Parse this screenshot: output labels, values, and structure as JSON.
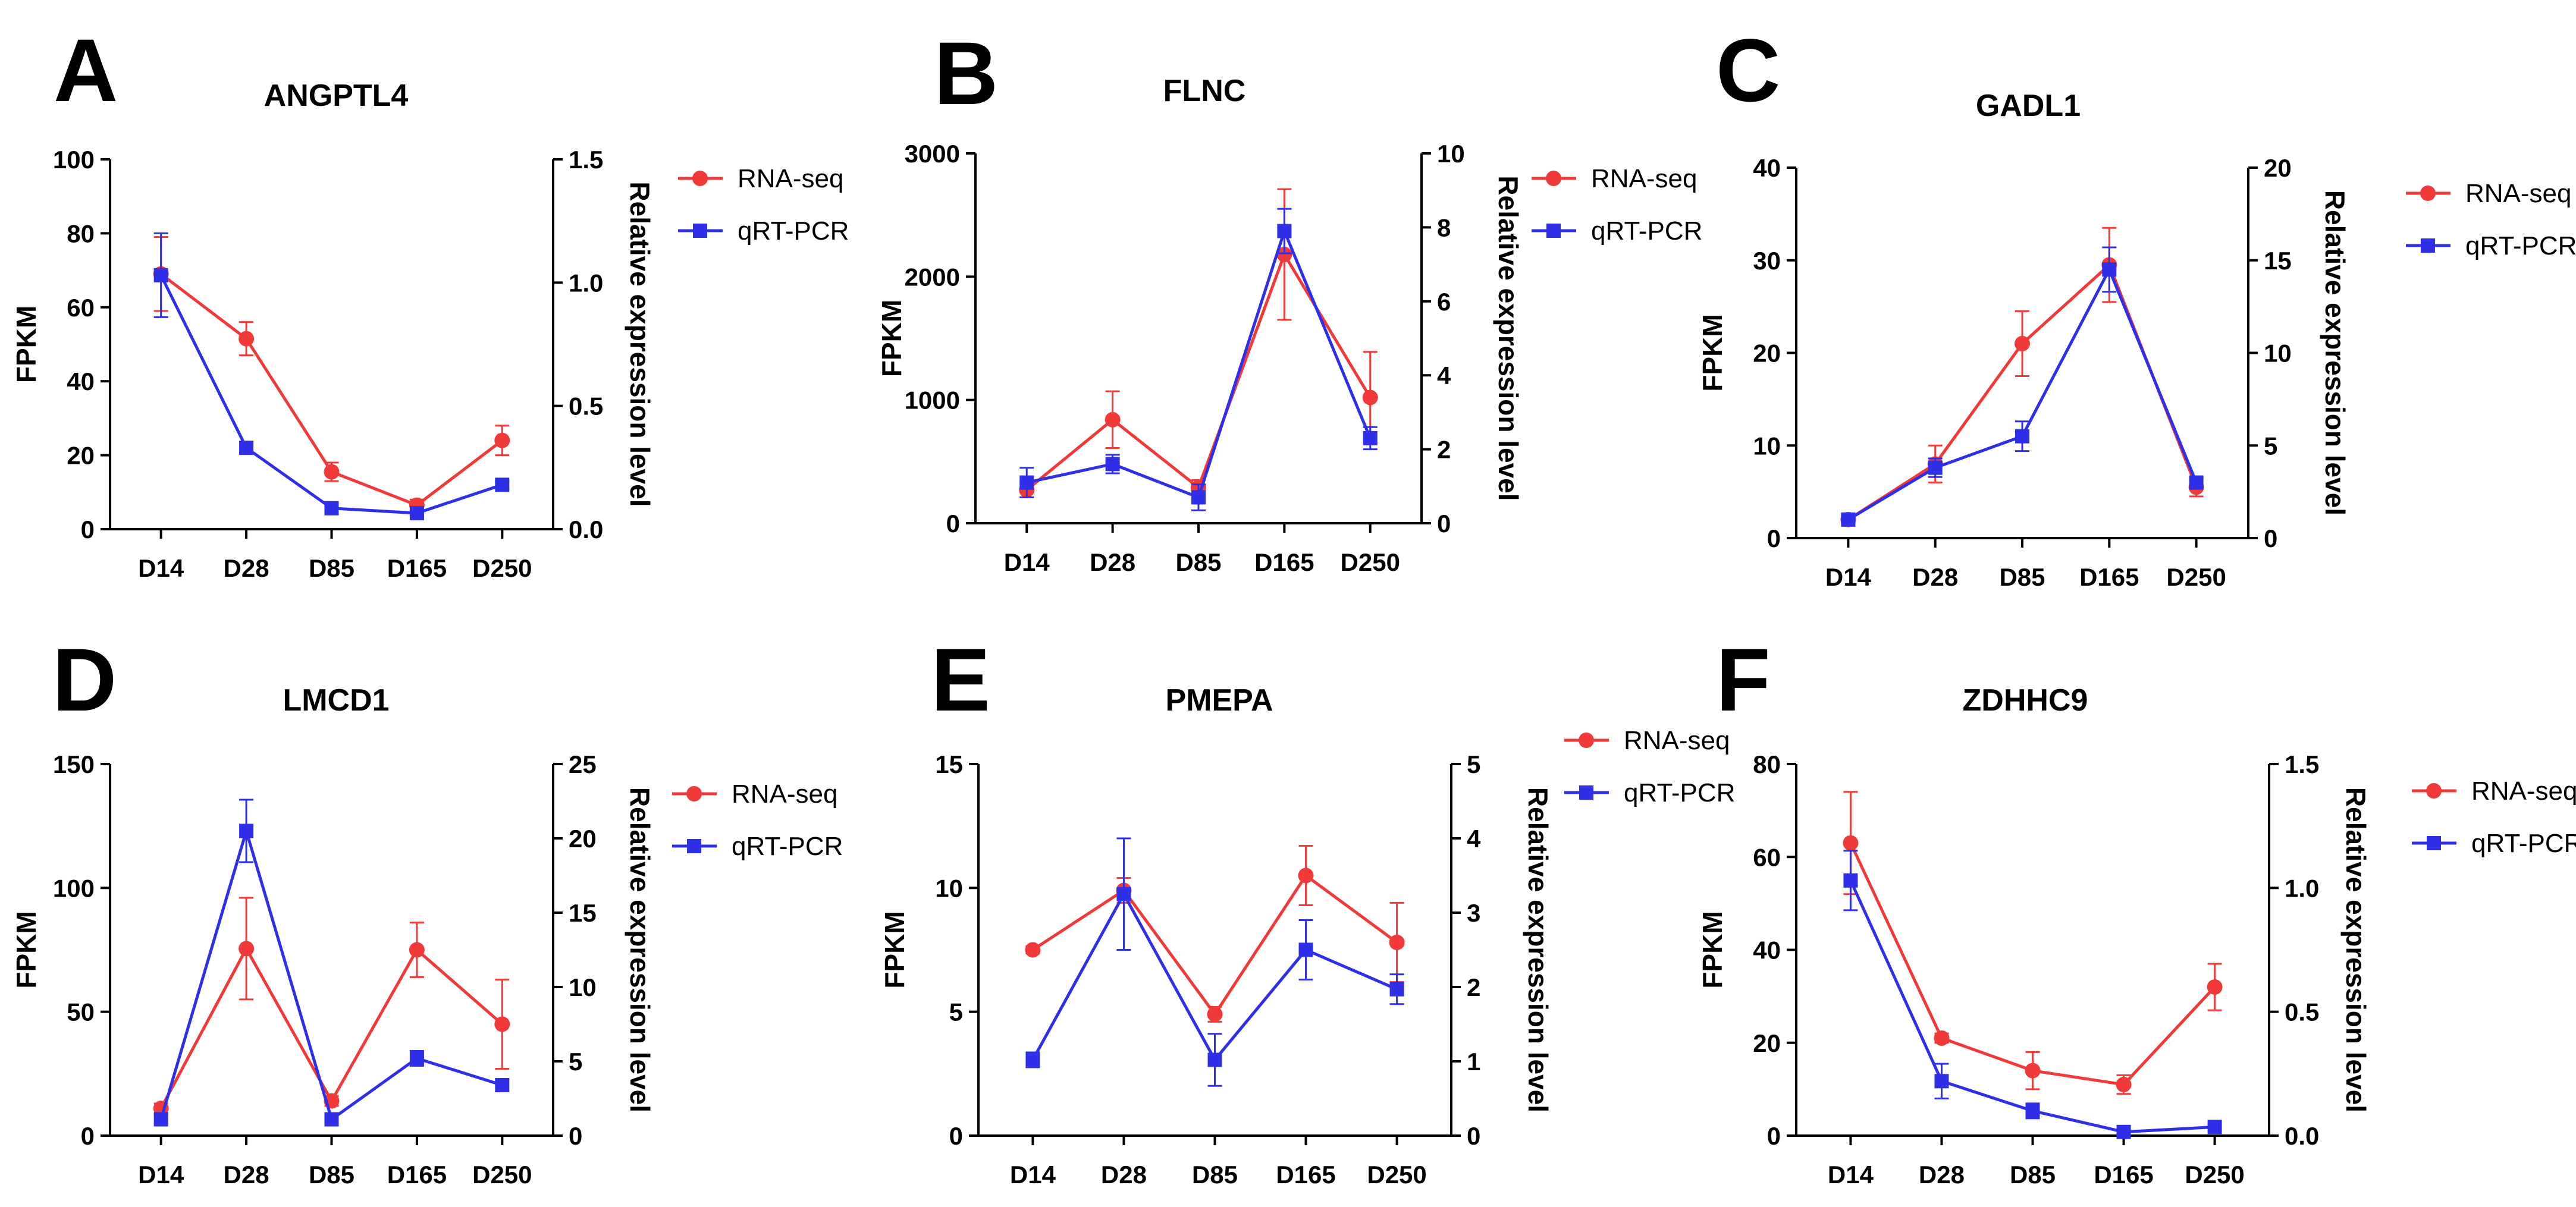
{
  "legend": {
    "rna": "RNA-seq",
    "qpcr": "qRT-PCR"
  },
  "colors": {
    "rna": "#f03a3a",
    "qpcr": "#2f2fe8"
  },
  "chart_data": [
    {
      "type": "line",
      "panel": "A",
      "title": "ANGPTL4",
      "ylabel": "FPKM",
      "y2label": "Relative expression level",
      "categories": [
        "D14",
        "D28",
        "D85",
        "D165",
        "D250"
      ],
      "ylim": [
        0,
        100
      ],
      "yticks": [
        "0",
        "20",
        "40",
        "60",
        "80",
        "100"
      ],
      "y2lim": [
        0,
        1.5
      ],
      "y2ticks": [
        "0.0",
        "0.5",
        "1.0",
        "1.5"
      ],
      "series": [
        {
          "name": "RNA-seq",
          "axis": "left",
          "values": [
            69,
            51.5,
            15.5,
            6.5,
            24
          ],
          "errors": [
            10,
            4.5,
            2.5,
            1.5,
            4
          ]
        },
        {
          "name": "qRT-PCR",
          "axis": "right",
          "values": [
            1.03,
            0.33,
            0.085,
            0.065,
            0.18
          ],
          "errors": [
            0.17,
            0.015,
            0.015,
            0.01,
            0.015
          ]
        }
      ]
    },
    {
      "type": "line",
      "panel": "B",
      "title": "FLNC",
      "ylabel": "FPKM",
      "y2label": "Relative expression level",
      "categories": [
        "D14",
        "D28",
        "D85",
        "D165",
        "D250"
      ],
      "ylim": [
        0,
        3000
      ],
      "yticks": [
        "0",
        "1000",
        "2000",
        "3000"
      ],
      "y2lim": [
        0,
        10
      ],
      "y2ticks": [
        "0",
        "2",
        "4",
        "6",
        "8",
        "10"
      ],
      "series": [
        {
          "name": "RNA-seq",
          "axis": "left",
          "values": [
            270,
            840,
            290,
            2180,
            1020
          ],
          "errors": [
            60,
            230,
            60,
            530,
            370
          ]
        },
        {
          "name": "qRT-PCR",
          "axis": "right",
          "values": [
            1.1,
            1.6,
            0.7,
            7.9,
            2.3
          ],
          "errors": [
            0.4,
            0.25,
            0.35,
            0.6,
            0.3
          ]
        }
      ]
    },
    {
      "type": "line",
      "panel": "C",
      "title": "GADL1",
      "ylabel": "FPKM",
      "y2label": "Relative expression level",
      "categories": [
        "D14",
        "D28",
        "D85",
        "D165",
        "D250"
      ],
      "ylim": [
        0,
        40
      ],
      "yticks": [
        "0",
        "10",
        "20",
        "30",
        "40"
      ],
      "y2lim": [
        0,
        20
      ],
      "y2ticks": [
        "0",
        "5",
        "10",
        "15",
        "20"
      ],
      "series": [
        {
          "name": "RNA-seq",
          "axis": "left",
          "values": [
            2,
            8,
            21,
            29.5,
            5.5
          ],
          "errors": [
            0.4,
            2,
            3.5,
            4,
            1
          ]
        },
        {
          "name": "qRT-PCR",
          "axis": "right",
          "values": [
            1,
            3.8,
            5.5,
            14.5,
            3
          ],
          "errors": [
            0.2,
            0.5,
            0.8,
            1.2,
            0.3
          ]
        }
      ]
    },
    {
      "type": "line",
      "panel": "D",
      "title": "LMCD1",
      "ylabel": "FPKM",
      "y2label": "Relative expression level",
      "categories": [
        "D14",
        "D28",
        "D85",
        "D165",
        "D250"
      ],
      "ylim": [
        0,
        150
      ],
      "yticks": [
        "0",
        "50",
        "100",
        "150"
      ],
      "y2lim": [
        0,
        25
      ],
      "y2ticks": [
        "0",
        "5",
        "10",
        "15",
        "20",
        "25"
      ],
      "series": [
        {
          "name": "RNA-seq",
          "axis": "left",
          "values": [
            11,
            75.5,
            14,
            75,
            45
          ],
          "errors": [
            2,
            20.5,
            2,
            11,
            18
          ]
        },
        {
          "name": "qRT-PCR",
          "axis": "right",
          "values": [
            1.1,
            20.5,
            1.1,
            5.2,
            3.4
          ],
          "errors": [
            0.3,
            2.1,
            0.3,
            0.5,
            0.4
          ]
        }
      ]
    },
    {
      "type": "line",
      "panel": "E",
      "title": "PMEPA",
      "ylabel": "FPKM",
      "y2label": "Relative expression level",
      "categories": [
        "D14",
        "D28",
        "D85",
        "D165",
        "D250"
      ],
      "ylim": [
        0,
        15
      ],
      "yticks": [
        "0",
        "5",
        "10",
        "15"
      ],
      "y2lim": [
        0,
        5
      ],
      "y2ticks": [
        "0",
        "1",
        "2",
        "3",
        "4",
        "5"
      ],
      "series": [
        {
          "name": "RNA-seq",
          "axis": "left",
          "values": [
            7.5,
            9.9,
            4.9,
            10.5,
            7.8
          ],
          "errors": [
            0.15,
            0.5,
            0.3,
            1.2,
            1.6
          ]
        },
        {
          "name": "qRT-PCR",
          "axis": "right",
          "values": [
            1.02,
            3.25,
            1.02,
            2.5,
            1.97
          ],
          "errors": [
            0.1,
            0.75,
            0.35,
            0.4,
            0.2
          ]
        }
      ]
    },
    {
      "type": "line",
      "panel": "F",
      "title": "ZDHHC9",
      "ylabel": "FPKM",
      "y2label": "Relative expression level",
      "categories": [
        "D14",
        "D28",
        "D85",
        "D165",
        "D250"
      ],
      "ylim": [
        0,
        80
      ],
      "yticks": [
        "0",
        "20",
        "40",
        "60",
        "80"
      ],
      "y2lim": [
        0,
        1.5
      ],
      "y2ticks": [
        "0.0",
        "0.5",
        "1.0",
        "1.5"
      ],
      "series": [
        {
          "name": "RNA-seq",
          "axis": "left",
          "values": [
            63,
            21,
            14,
            11,
            32
          ],
          "errors": [
            11,
            1,
            4,
            2,
            5
          ]
        },
        {
          "name": "qRT-PCR",
          "axis": "right",
          "values": [
            1.03,
            0.22,
            0.1,
            0.015,
            0.035
          ],
          "errors": [
            0.12,
            0.07,
            0.03,
            0.01,
            0.01
          ]
        }
      ]
    }
  ]
}
